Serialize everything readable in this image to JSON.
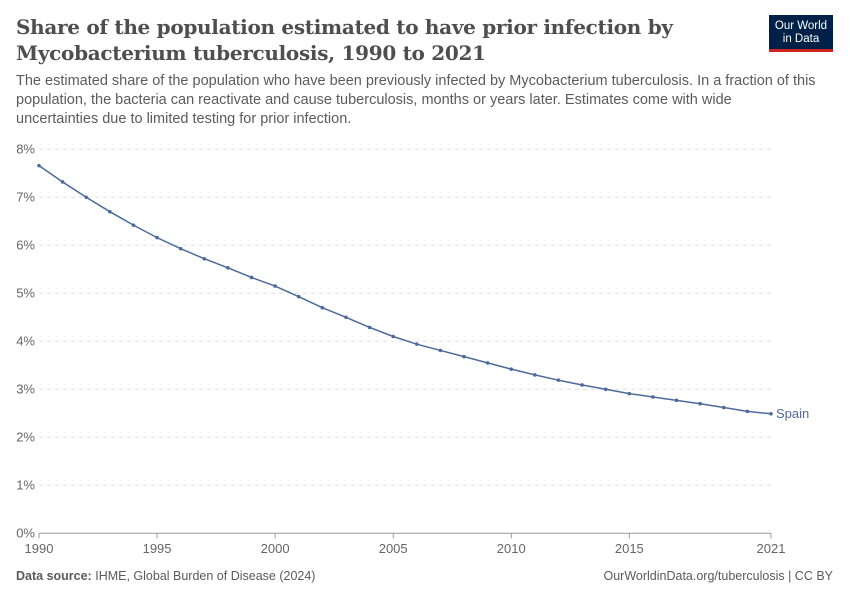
{
  "header": {
    "title": "Share of the population estimated to have prior infection by Mycobacterium tuberculosis, 1990 to 2021",
    "subtitle": "The estimated share of the population who have been previously infected by Mycobacterium tuberculosis. In a fraction of this population, the bacteria can reactivate and cause tuberculosis, months or years later. Estimates come with wide uncertainties due to limited testing for prior infection.",
    "logo_line1": "Our World",
    "logo_line2": "in Data"
  },
  "footer": {
    "source_label": "Data source:",
    "source": "IHME, Global Burden of Disease (2024)",
    "license": "OurWorldinData.org/tuberculosis | CC BY"
  },
  "chart_data": {
    "type": "line",
    "title": "Share of the population estimated to have prior infection by Mycobacterium tuberculosis, 1990 to 2021",
    "xlabel": "",
    "ylabel": "",
    "ylim": [
      0,
      8
    ],
    "xlim": [
      1990,
      2021
    ],
    "yticks": [
      "0%",
      "1%",
      "2%",
      "3%",
      "4%",
      "5%",
      "6%",
      "7%",
      "8%"
    ],
    "xticks": [
      "1990",
      "1995",
      "2000",
      "2005",
      "2010",
      "2015",
      "2021"
    ],
    "grid": true,
    "color": "#4c6a9c",
    "series": [
      {
        "name": "Spain",
        "x": [
          1990,
          1991,
          1992,
          1993,
          1994,
          1995,
          1996,
          1997,
          1998,
          1999,
          2000,
          2001,
          2002,
          2003,
          2004,
          2005,
          2006,
          2007,
          2008,
          2009,
          2010,
          2011,
          2012,
          2013,
          2014,
          2015,
          2016,
          2017,
          2018,
          2019,
          2020,
          2021
        ],
        "values": [
          7.66,
          7.32,
          7.0,
          6.7,
          6.42,
          6.16,
          5.93,
          5.72,
          5.53,
          5.33,
          5.15,
          4.93,
          4.7,
          4.5,
          4.29,
          4.1,
          3.94,
          3.81,
          3.68,
          3.55,
          3.42,
          3.3,
          3.19,
          3.09,
          3.0,
          2.91,
          2.84,
          2.77,
          2.7,
          2.62,
          2.54,
          2.49
        ]
      }
    ]
  }
}
